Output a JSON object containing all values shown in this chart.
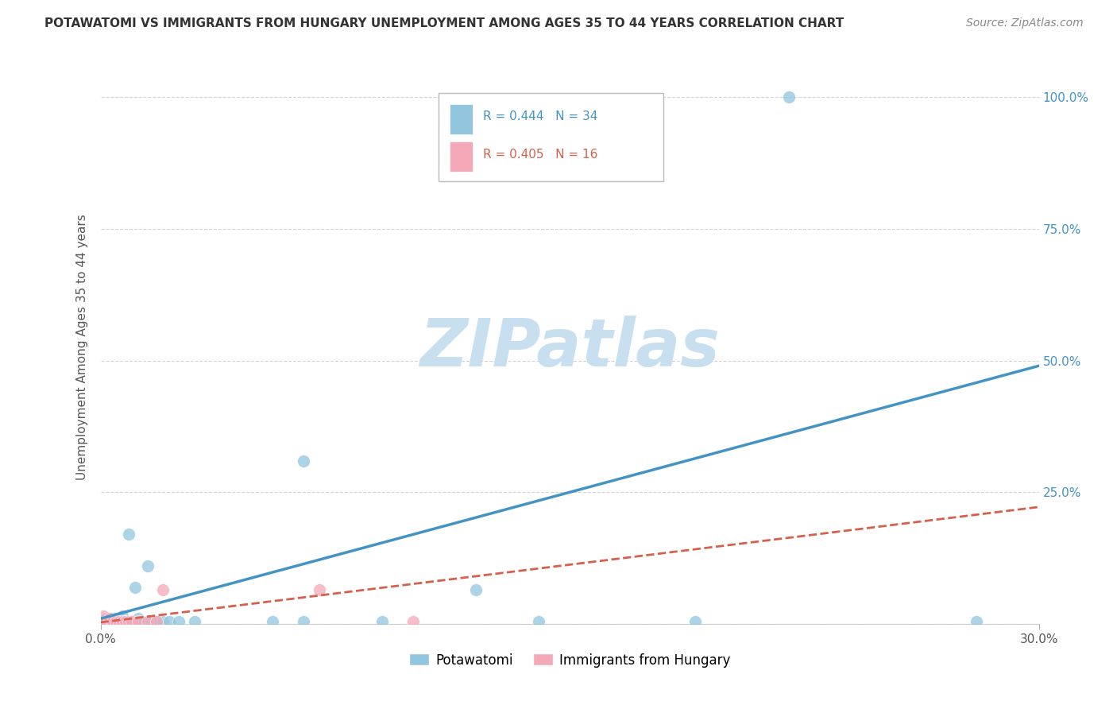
{
  "title": "POTAWATOMI VS IMMIGRANTS FROM HUNGARY UNEMPLOYMENT AMONG AGES 35 TO 44 YEARS CORRELATION CHART",
  "source": "Source: ZipAtlas.com",
  "ylabel": "Unemployment Among Ages 35 to 44 years",
  "watermark": "ZIPatlas",
  "legend1_label": "Potawatomi",
  "legend2_label": "Immigrants from Hungary",
  "R1": 0.444,
  "N1": 34,
  "R2": 0.405,
  "N2": 16,
  "blue_color": "#92c5de",
  "pink_color": "#f4a8b8",
  "blue_line_color": "#4393c3",
  "pink_line_color": "#d6604d",
  "blue_scatter_x": [
    0.001,
    0.002,
    0.002,
    0.003,
    0.004,
    0.004,
    0.005,
    0.005,
    0.006,
    0.006,
    0.007,
    0.007,
    0.008,
    0.009,
    0.01,
    0.011,
    0.012,
    0.013,
    0.015,
    0.016,
    0.018,
    0.02,
    0.022,
    0.025,
    0.03,
    0.055,
    0.065,
    0.065,
    0.09,
    0.12,
    0.14,
    0.19,
    0.22,
    0.28
  ],
  "blue_scatter_y": [
    0.005,
    0.005,
    0.01,
    0.005,
    0.005,
    0.01,
    0.005,
    0.01,
    0.005,
    0.01,
    0.005,
    0.015,
    0.005,
    0.17,
    0.005,
    0.07,
    0.01,
    0.005,
    0.11,
    0.005,
    0.005,
    0.005,
    0.005,
    0.005,
    0.005,
    0.005,
    0.005,
    0.31,
    0.005,
    0.065,
    0.005,
    0.005,
    1.0,
    0.005
  ],
  "pink_scatter_x": [
    0.001,
    0.002,
    0.003,
    0.004,
    0.005,
    0.006,
    0.007,
    0.008,
    0.009,
    0.01,
    0.012,
    0.015,
    0.018,
    0.02,
    0.07,
    0.1
  ],
  "pink_scatter_y": [
    0.015,
    0.005,
    0.01,
    0.005,
    0.005,
    0.005,
    0.005,
    0.005,
    0.005,
    0.005,
    0.005,
    0.005,
    0.005,
    0.065,
    0.065,
    0.005
  ],
  "blue_line_slope": 1.6,
  "blue_line_intercept": 0.01,
  "pink_line_slope": 0.73,
  "pink_line_intercept": 0.003,
  "xmin": 0.0,
  "xmax": 0.3,
  "ymin": 0.0,
  "ymax": 1.05,
  "yticks": [
    0.0,
    0.25,
    0.5,
    0.75,
    1.0
  ],
  "ytick_labels": [
    "",
    "25.0%",
    "50.0%",
    "75.0%",
    "100.0%"
  ],
  "grid_color": "#d0d0d0",
  "background_color": "#ffffff",
  "text_color": "#555555",
  "right_axis_color": "#4393c3",
  "title_fontsize": 11,
  "source_fontsize": 10,
  "axis_label_fontsize": 11,
  "tick_fontsize": 11
}
